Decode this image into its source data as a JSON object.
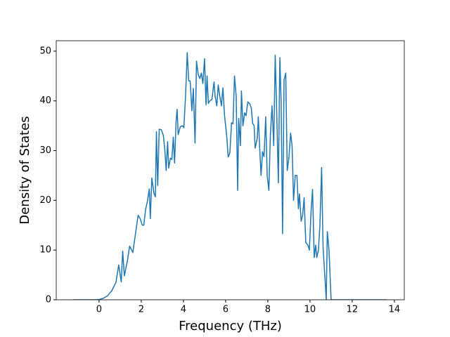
{
  "chart_data": {
    "type": "line",
    "x_label": "Frequency (THz)",
    "y_label": "Density of States",
    "color": "#1f77b4",
    "x": [
      -1.25,
      -0.2,
      0,
      0.2,
      0.4,
      0.6,
      0.8,
      0.93,
      1.05,
      1.12,
      1.2,
      1.35,
      1.45,
      1.6,
      1.75,
      1.85,
      1.95,
      2.05,
      2.12,
      2.2,
      2.3,
      2.38,
      2.43,
      2.5,
      2.6,
      2.67,
      2.72,
      2.78,
      2.85,
      2.95,
      3.05,
      3.12,
      3.18,
      3.25,
      3.3,
      3.38,
      3.45,
      3.52,
      3.58,
      3.65,
      3.7,
      3.75,
      3.85,
      3.95,
      4.02,
      4.1,
      4.18,
      4.25,
      4.32,
      4.4,
      4.47,
      4.55,
      4.62,
      4.7,
      4.78,
      4.85,
      4.92,
      5.0,
      5.07,
      5.12,
      5.18,
      5.25,
      5.35,
      5.45,
      5.5,
      5.58,
      5.65,
      5.72,
      5.8,
      5.87,
      5.95,
      6.05,
      6.12,
      6.2,
      6.28,
      6.35,
      6.42,
      6.5,
      6.57,
      6.62,
      6.7,
      6.75,
      6.82,
      6.9,
      6.97,
      7.05,
      7.15,
      7.22,
      7.28,
      7.35,
      7.4,
      7.5,
      7.55,
      7.62,
      7.68,
      7.75,
      7.82,
      7.9,
      7.97,
      8.05,
      8.12,
      8.2,
      8.28,
      8.35,
      8.42,
      8.5,
      8.57,
      8.63,
      8.7,
      8.77,
      8.85,
      8.92,
      9.0,
      9.08,
      9.15,
      9.22,
      9.3,
      9.38,
      9.45,
      9.5,
      9.58,
      9.65,
      9.72,
      9.8,
      9.9,
      9.97,
      10.05,
      10.12,
      10.2,
      10.27,
      10.32,
      10.4,
      10.47,
      10.55,
      10.62,
      10.7,
      10.77,
      10.82,
      10.9,
      11.0,
      11.1,
      13.65
    ],
    "values": [
      0,
      0,
      0.05,
      0.3,
      0.8,
      1.8,
      3.5,
      7,
      3.6,
      9.8,
      4.8,
      8,
      10.8,
      9.5,
      14,
      17,
      16.3,
      15,
      15,
      18,
      20,
      22.3,
      16.3,
      24.5,
      21.5,
      20.7,
      33.8,
      23,
      34.3,
      34.2,
      33,
      30,
      26,
      31.8,
      26.5,
      28.5,
      28.2,
      32.7,
      27.5,
      35.8,
      38.3,
      33.2,
      34.8,
      35,
      34.6,
      41,
      49.7,
      44,
      44,
      38,
      42.5,
      31.5,
      48,
      45.3,
      44.5,
      45.6,
      43.5,
      48.5,
      39.2,
      45,
      39.5,
      40,
      40.3,
      43.8,
      41,
      39,
      43.2,
      41,
      39,
      42.6,
      37,
      33,
      28.7,
      29.5,
      35.6,
      35.4,
      45,
      41,
      22,
      36.5,
      31,
      42,
      35,
      37.6,
      37,
      39.8,
      39.4,
      38.5,
      35.5,
      35,
      30.5,
      32.5,
      36.8,
      30,
      25,
      29.8,
      28.8,
      36.8,
      25,
      22,
      33,
      39,
      31,
      49.2,
      38,
      23.5,
      48.7,
      40,
      13.3,
      44.2,
      45.6,
      26,
      28.5,
      33.5,
      31,
      20,
      25,
      25,
      18.3,
      21.3,
      15.8,
      17,
      20.5,
      11.5,
      11,
      10,
      17.8,
      22.2,
      8.5,
      11,
      8.5,
      10,
      15,
      26.6,
      10.5,
      5,
      0,
      13.7,
      10,
      0,
      0,
      0
    ],
    "xlim": [
      -2.03,
      14.47
    ],
    "ylim": [
      0,
      52.1
    ],
    "xticks": [
      0,
      2,
      4,
      6,
      8,
      10,
      12,
      14
    ],
    "yticks": [
      0,
      10,
      20,
      30,
      40,
      50
    ]
  }
}
